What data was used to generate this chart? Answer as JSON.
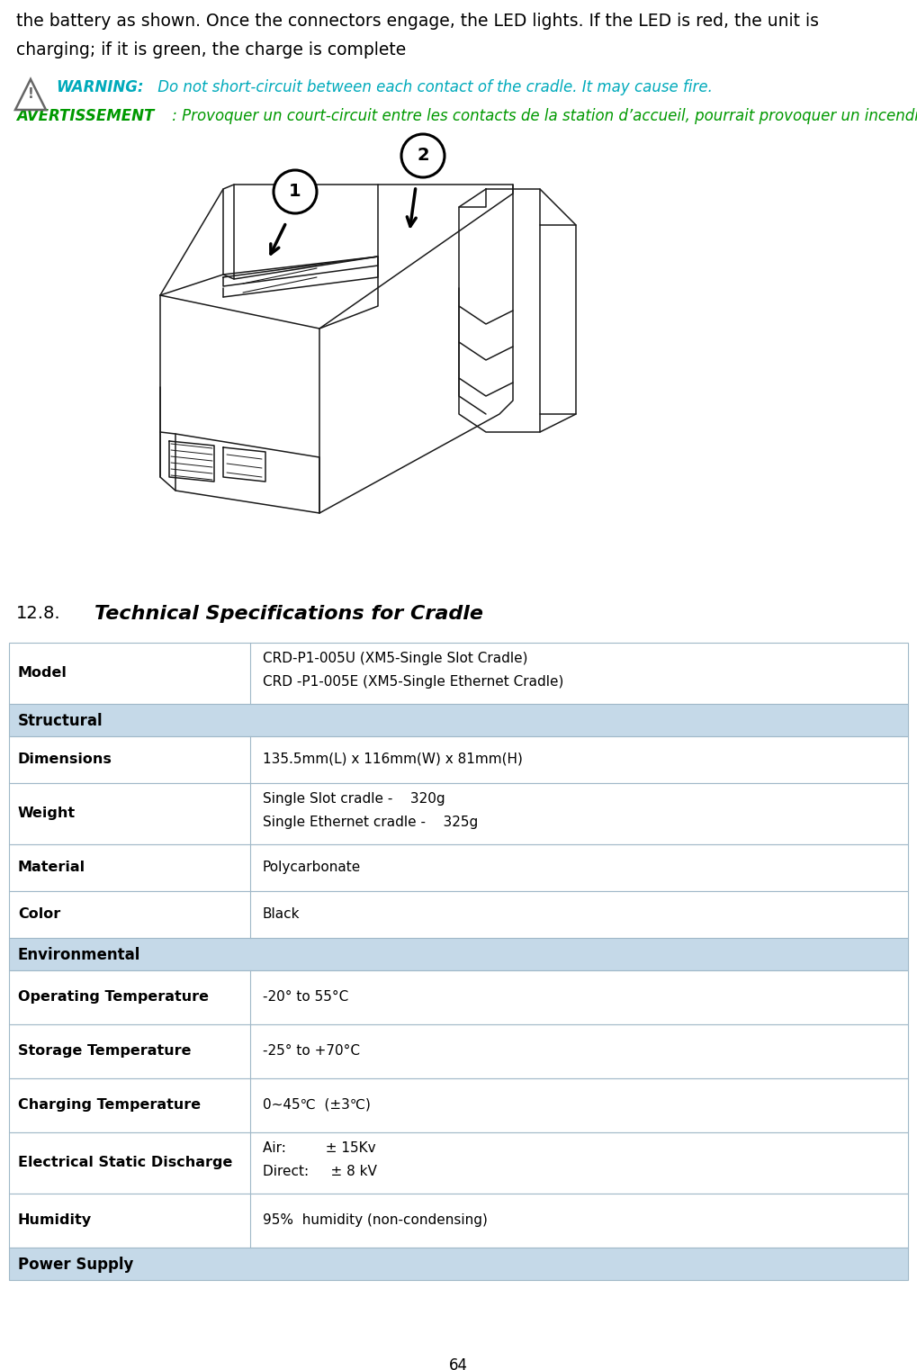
{
  "page_number": "64",
  "top_text_line1": "the battery as shown. Once the connectors engage, the LED lights. If the LED is red, the unit is",
  "top_text_line2": "charging; if it is green, the charge is complete",
  "warning_label": "WARNING:",
  "warning_text": " Do not short-circuit between each contact of the cradle. It may cause fire.",
  "avertissement_label": "AVERTISSEMENT",
  "avertissement_text": " : Provoquer un court-circuit entre les contacts de la station d’accueil, pourrait provoquer un incendie.",
  "section_number": "12.8.",
  "section_title": "Technical Specifications for Cradle",
  "table_header_bg": "#c5d9e8",
  "table_border_color": "#a0b8c8",
  "table_rows": [
    {
      "label": "Model",
      "value": "CRD-P1-005U (XM5-Single Slot Cradle)\nCRD -P1-005E (XM5-Single Ethernet Cradle)",
      "header": false,
      "span": false,
      "rh": 68
    },
    {
      "label": "Structural",
      "value": "",
      "header": true,
      "span": true,
      "rh": 36
    },
    {
      "label": "Dimensions",
      "value": "135.5mm(L) x 116mm(W) x 81mm(H)",
      "header": false,
      "span": false,
      "rh": 52
    },
    {
      "label": "Weight",
      "value": "Single Slot cradle -    320g\nSingle Ethernet cradle -    325g",
      "header": false,
      "span": false,
      "rh": 68
    },
    {
      "label": "Material",
      "value": "Polycarbonate",
      "header": false,
      "span": false,
      "rh": 52
    },
    {
      "label": "Color",
      "value": "Black",
      "header": false,
      "span": false,
      "rh": 52
    },
    {
      "label": "Environmental",
      "value": "",
      "header": true,
      "span": true,
      "rh": 36
    },
    {
      "label": "Operating Temperature",
      "value": "-20° to 55°C",
      "header": false,
      "span": false,
      "rh": 60
    },
    {
      "label": "Storage Temperature",
      "value": "-25° to +70°C",
      "header": false,
      "span": false,
      "rh": 60
    },
    {
      "label": "Charging Temperature",
      "value": "0~45℃  (±3℃)",
      "header": false,
      "span": false,
      "rh": 60
    },
    {
      "label": "Electrical Static Discharge",
      "value": "Air:         ± 15Kv\nDirect:     ± 8 kV",
      "header": false,
      "span": false,
      "rh": 68
    },
    {
      "label": "Humidity",
      "value": "95%  humidity (non-condensing)",
      "header": false,
      "span": false,
      "rh": 60
    },
    {
      "label": "Power Supply",
      "value": "",
      "header": true,
      "span": true,
      "rh": 36
    }
  ],
  "warning_color": "#00aabb",
  "avertissement_color": "#009900",
  "bg_color": "#ffffff"
}
